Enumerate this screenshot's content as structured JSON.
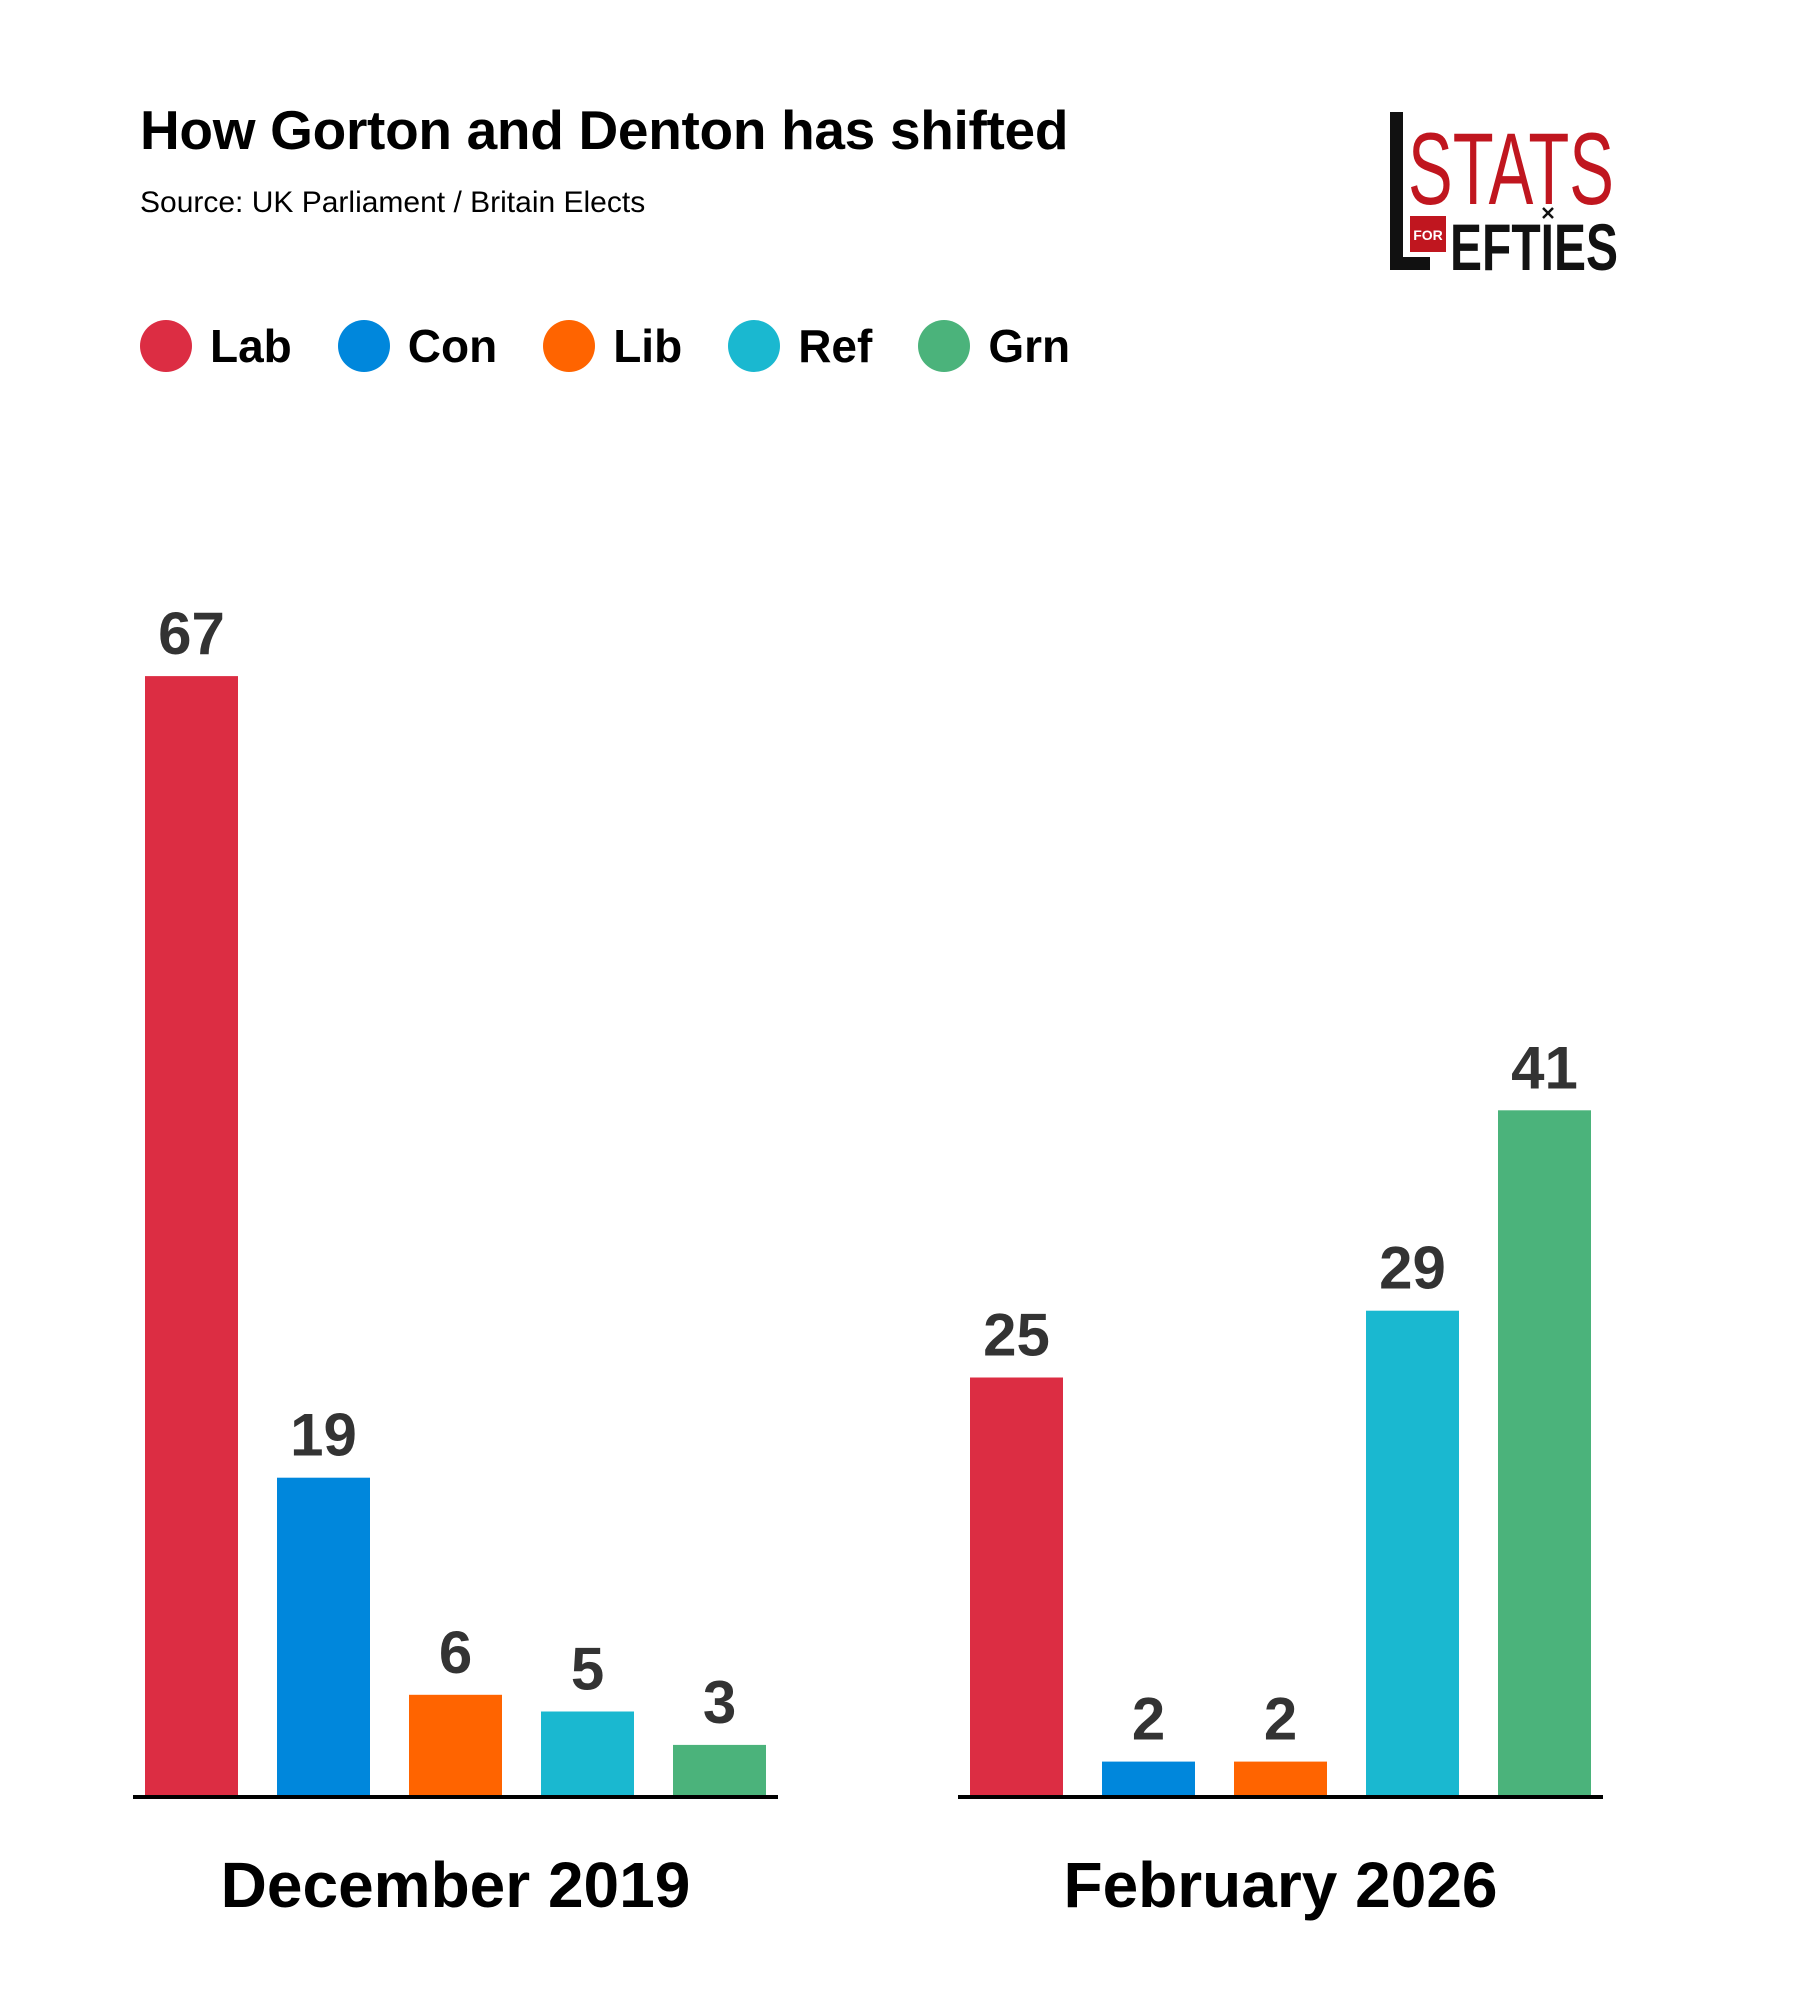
{
  "chart_data": {
    "type": "bar",
    "title": "How Gorton and Denton has shifted",
    "subtitle": "Source: UK Parliament / Britain Elects",
    "categories": [
      "December 2019",
      "February 2026"
    ],
    "legend_position": "top-left",
    "grid": false,
    "ylim": [
      0,
      70
    ],
    "series": [
      {
        "name": "Lab",
        "color": "#dc2d43",
        "values": [
          67,
          25
        ]
      },
      {
        "name": "Con",
        "color": "#0087dc",
        "values": [
          19,
          2
        ]
      },
      {
        "name": "Lib",
        "color": "#ff6400",
        "values": [
          6,
          2
        ]
      },
      {
        "name": "Ref",
        "color": "#1ab8d0",
        "values": [
          5,
          29
        ]
      },
      {
        "name": "Grn",
        "color": "#4bb37b",
        "values": [
          3,
          41
        ]
      }
    ]
  },
  "logo": {
    "top_text": "STATS",
    "middle_text": "FOR",
    "bottom_text": "EFTIES",
    "color": "#c0161f"
  }
}
